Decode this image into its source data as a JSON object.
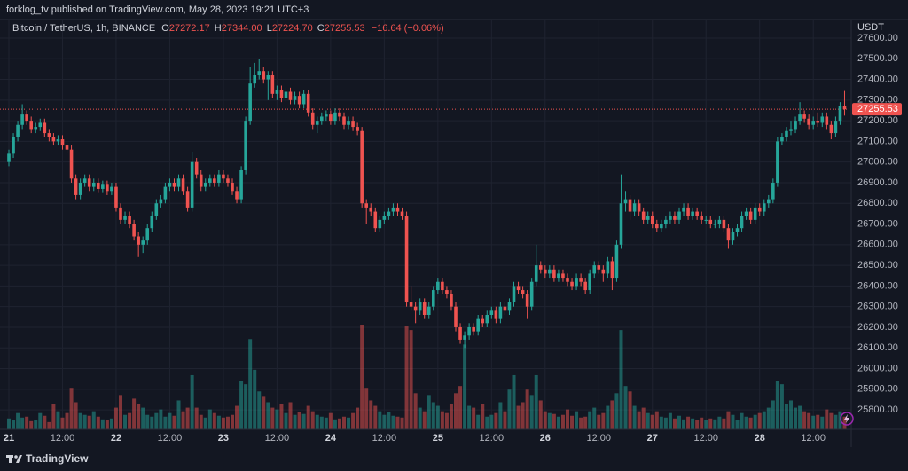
{
  "header": {
    "published": "forklog_tv published on TradingView.com, May 28, 2023 19:21 UTC+3"
  },
  "footer": {
    "brand": "TradingView"
  },
  "chart_data": {
    "type": "candlestick",
    "title": "Bitcoin / TetherUS, 1h, BINANCE",
    "ohlc_keys": [
      "O",
      "H",
      "L",
      "C"
    ],
    "ohlc_labels": [
      "27272.17",
      "27344.00",
      "27224.70",
      "27255.53"
    ],
    "change_label": "−16.64 (−0.06%)",
    "y_axis_label": "USDT",
    "up_color": "#26a69a",
    "down_color": "#ef5350",
    "grid": true,
    "ylim": [
      25706,
      27690
    ],
    "yticks": [
      {
        "value": 25800,
        "label": "25800.00"
      },
      {
        "value": 25900,
        "label": "25900.00"
      },
      {
        "value": 26000,
        "label": "26000.00"
      },
      {
        "value": 26100,
        "label": "26100.00"
      },
      {
        "value": 26200,
        "label": "26200.00"
      },
      {
        "value": 26300,
        "label": "26300.00"
      },
      {
        "value": 26400,
        "label": "26400.00"
      },
      {
        "value": 26500,
        "label": "26500.00"
      },
      {
        "value": 26600,
        "label": "26600.00"
      },
      {
        "value": 26700,
        "label": "26700.00"
      },
      {
        "value": 26800,
        "label": "26800.00"
      },
      {
        "value": 26900,
        "label": "26900.00"
      },
      {
        "value": 27000,
        "label": "27000.00"
      },
      {
        "value": 27100,
        "label": "27100.00"
      },
      {
        "value": 27200,
        "label": "27200.00"
      },
      {
        "value": 27300,
        "label": "27300.00"
      },
      {
        "value": 27400,
        "label": "27400.00"
      },
      {
        "value": 27500,
        "label": "27500.00"
      },
      {
        "value": 27600,
        "label": "27600.00"
      }
    ],
    "categories": [
      "21",
      null,
      null,
      null,
      null,
      null,
      null,
      null,
      null,
      null,
      null,
      null,
      "12:00",
      null,
      null,
      null,
      null,
      null,
      null,
      null,
      null,
      null,
      null,
      null,
      "22",
      null,
      null,
      null,
      null,
      null,
      null,
      null,
      null,
      null,
      null,
      null,
      "12:00",
      null,
      null,
      null,
      null,
      null,
      null,
      null,
      null,
      null,
      null,
      null,
      "23",
      null,
      null,
      null,
      null,
      null,
      null,
      null,
      null,
      null,
      null,
      null,
      "12:00",
      null,
      null,
      null,
      null,
      null,
      null,
      null,
      null,
      null,
      null,
      null,
      "24",
      null,
      null,
      null,
      null,
      null,
      null,
      null,
      null,
      null,
      null,
      null,
      "12:00",
      null,
      null,
      null,
      null,
      null,
      null,
      null,
      null,
      null,
      null,
      null,
      "25",
      null,
      null,
      null,
      null,
      null,
      null,
      null,
      null,
      null,
      null,
      null,
      "12:00",
      null,
      null,
      null,
      null,
      null,
      null,
      null,
      null,
      null,
      null,
      null,
      "26",
      null,
      null,
      null,
      null,
      null,
      null,
      null,
      null,
      null,
      null,
      null,
      "12:00",
      null,
      null,
      null,
      null,
      null,
      null,
      null,
      null,
      null,
      null,
      null,
      "27",
      null,
      null,
      null,
      null,
      null,
      null,
      null,
      null,
      null,
      null,
      null,
      "12:00",
      null,
      null,
      null,
      null,
      null,
      null,
      null,
      null,
      null,
      null,
      null,
      "28",
      null,
      null,
      null,
      null,
      null,
      null,
      null,
      null,
      null,
      null,
      null,
      "12:00",
      null,
      null,
      null,
      null,
      null,
      null,
      null
    ],
    "open": [
      27000,
      27040,
      27120,
      27180,
      27230,
      27200,
      27160,
      27170,
      27190,
      27140,
      27120,
      27100,
      27110,
      27080,
      27060,
      26920,
      26840,
      26900,
      26920,
      26880,
      26900,
      26870,
      26890,
      26860,
      26880,
      26780,
      26720,
      26740,
      26700,
      26640,
      26600,
      26620,
      26680,
      26740,
      26800,
      26820,
      26880,
      26900,
      26880,
      26920,
      26860,
      26780,
      27000,
      26940,
      26880,
      26900,
      26920,
      26900,
      26940,
      26920,
      26900,
      26860,
      26820,
      26960,
      27200,
      27380,
      27420,
      27440,
      27400,
      27420,
      27330,
      27350,
      27310,
      27340,
      27300,
      27320,
      27280,
      27330,
      27240,
      27180,
      27200,
      27220,
      27230,
      27200,
      27240,
      27220,
      27180,
      27200,
      27170,
      27150,
      26800,
      26780,
      26760,
      26680,
      26720,
      26740,
      26760,
      26780,
      26760,
      26740,
      26320,
      26300,
      26280,
      26320,
      26260,
      26300,
      26380,
      26420,
      26380,
      26360,
      26300,
      26200,
      26140,
      26160,
      26200,
      26180,
      26240,
      26220,
      26260,
      26280,
      26240,
      26300,
      26280,
      26320,
      26400,
      26380,
      26360,
      26300,
      26420,
      26500,
      26480,
      26460,
      26480,
      26440,
      26460,
      26440,
      26420,
      26400,
      26440,
      26420,
      26380,
      26460,
      26500,
      26480,
      26460,
      26520,
      26440,
      26600,
      26800,
      26820,
      26760,
      26800,
      26760,
      26720,
      26740,
      26700,
      26680,
      26700,
      26720,
      26740,
      26720,
      26760,
      26780,
      26740,
      26760,
      26740,
      26720,
      26720,
      26700,
      26700,
      26720,
      26680,
      26620,
      26660,
      26680,
      26740,
      26760,
      26720,
      26780,
      26760,
      26800,
      26820,
      26900,
      27100,
      27120,
      27150,
      27160,
      27200,
      27230,
      27210,
      27180,
      27200,
      27190,
      27220,
      27180,
      27140,
      27200,
      27272.17
    ],
    "high": [
      27060,
      27140,
      27200,
      27280,
      27250,
      27220,
      27190,
      27210,
      27210,
      27160,
      27140,
      27130,
      27130,
      27100,
      27080,
      26940,
      26920,
      26940,
      26940,
      26920,
      26920,
      26910,
      26910,
      26900,
      26900,
      26800,
      26760,
      26760,
      26720,
      26660,
      26640,
      26700,
      26760,
      26820,
      26840,
      26900,
      26920,
      26920,
      26940,
      26940,
      26880,
      27050,
      27020,
      26960,
      26920,
      26940,
      26940,
      26960,
      26960,
      26940,
      26920,
      26880,
      26980,
      27220,
      27460,
      27480,
      27500,
      27460,
      27440,
      27440,
      27370,
      27370,
      27360,
      27360,
      27340,
      27340,
      27350,
      27350,
      27260,
      27220,
      27240,
      27250,
      27250,
      27260,
      27260,
      27240,
      27220,
      27220,
      27190,
      27170,
      26820,
      26800,
      26780,
      26740,
      26760,
      26780,
      26800,
      26800,
      26780,
      26760,
      26400,
      26320,
      26340,
      26340,
      26320,
      26400,
      26440,
      26440,
      26400,
      26380,
      26320,
      26220,
      26180,
      26220,
      26220,
      26260,
      26260,
      26280,
      26300,
      26300,
      26320,
      26320,
      26340,
      26420,
      26420,
      26400,
      26380,
      26440,
      26600,
      26520,
      26500,
      26500,
      26500,
      26480,
      26480,
      26460,
      26440,
      26460,
      26460,
      26440,
      26480,
      26520,
      26520,
      26500,
      26540,
      26540,
      26620,
      26940,
      26860,
      26840,
      26820,
      26820,
      26780,
      26760,
      26760,
      26720,
      26720,
      26740,
      26760,
      26760,
      26780,
      26800,
      26800,
      26780,
      26780,
      26760,
      26740,
      26740,
      26720,
      26740,
      26740,
      26700,
      26680,
      26700,
      26760,
      26780,
      26780,
      26800,
      26800,
      26820,
      26840,
      26920,
      27120,
      27140,
      27170,
      27200,
      27220,
      27290,
      27250,
      27230,
      27220,
      27240,
      27240,
      27240,
      27200,
      27220,
      27290,
      27344
    ],
    "low": [
      26980,
      27020,
      27100,
      27160,
      27180,
      27140,
      27140,
      27150,
      27120,
      27100,
      27080,
      27080,
      27060,
      27040,
      26900,
      26820,
      26820,
      26880,
      26860,
      26860,
      26850,
      26850,
      26840,
      26840,
      26760,
      26700,
      26700,
      26680,
      26620,
      26540,
      26560,
      26600,
      26660,
      26720,
      26780,
      26800,
      26860,
      26860,
      26860,
      26840,
      26760,
      26760,
      26920,
      26860,
      26860,
      26880,
      26880,
      26880,
      26900,
      26880,
      26840,
      26800,
      26800,
      26940,
      27180,
      27360,
      27400,
      27380,
      27300,
      27310,
      27300,
      27290,
      27290,
      27280,
      27280,
      27260,
      27260,
      27220,
      27160,
      27140,
      27180,
      27200,
      27180,
      27180,
      27200,
      27160,
      27160,
      27150,
      27130,
      26780,
      26700,
      26740,
      26660,
      26660,
      26700,
      26720,
      26740,
      26740,
      26720,
      26300,
      26280,
      26220,
      26260,
      26240,
      26240,
      26280,
      26360,
      26360,
      26340,
      26280,
      26180,
      26120,
      26100,
      26140,
      26160,
      26160,
      26200,
      26200,
      26240,
      26220,
      26220,
      26260,
      26260,
      26300,
      26360,
      26340,
      26240,
      26280,
      26400,
      26460,
      26440,
      26440,
      26420,
      26420,
      26420,
      26400,
      26380,
      26380,
      26400,
      26360,
      26360,
      26440,
      26460,
      26420,
      26440,
      26380,
      26420,
      26580,
      26760,
      26720,
      26740,
      26740,
      26700,
      26700,
      26680,
      26660,
      26660,
      26680,
      26700,
      26700,
      26700,
      26740,
      26720,
      26720,
      26720,
      26700,
      26700,
      26680,
      26680,
      26680,
      26660,
      26580,
      26600,
      26640,
      26660,
      26720,
      26700,
      26700,
      26740,
      26740,
      26780,
      26800,
      26880,
      27080,
      27100,
      27130,
      27140,
      27180,
      27190,
      27160,
      27160,
      27170,
      27170,
      27160,
      27110,
      27120,
      27180,
      27224.7
    ],
    "close": [
      27040,
      27120,
      27180,
      27230,
      27200,
      27160,
      27170,
      27190,
      27140,
      27120,
      27100,
      27110,
      27080,
      27060,
      26920,
      26840,
      26900,
      26920,
      26880,
      26900,
      26870,
      26890,
      26860,
      26880,
      26780,
      26720,
      26740,
      26700,
      26640,
      26600,
      26620,
      26680,
      26740,
      26800,
      26820,
      26880,
      26900,
      26880,
      26920,
      26860,
      26780,
      27000,
      26940,
      26880,
      26900,
      26920,
      26900,
      26940,
      26920,
      26900,
      26860,
      26820,
      26960,
      27200,
      27380,
      27420,
      27440,
      27400,
      27420,
      27330,
      27350,
      27310,
      27340,
      27300,
      27320,
      27280,
      27330,
      27240,
      27180,
      27200,
      27220,
      27230,
      27200,
      27240,
      27220,
      27180,
      27200,
      27170,
      27150,
      26800,
      26780,
      26760,
      26680,
      26720,
      26740,
      26760,
      26780,
      26760,
      26740,
      26320,
      26300,
      26280,
      26320,
      26260,
      26300,
      26380,
      26420,
      26380,
      26360,
      26300,
      26200,
      26140,
      26160,
      26200,
      26180,
      26240,
      26220,
      26260,
      26280,
      26240,
      26300,
      26280,
      26320,
      26400,
      26380,
      26360,
      26300,
      26420,
      26500,
      26480,
      26460,
      26480,
      26440,
      26460,
      26440,
      26420,
      26400,
      26440,
      26420,
      26380,
      26460,
      26500,
      26480,
      26460,
      26520,
      26440,
      26600,
      26800,
      26820,
      26760,
      26800,
      26760,
      26720,
      26740,
      26700,
      26680,
      26700,
      26720,
      26740,
      26720,
      26760,
      26780,
      26740,
      26760,
      26740,
      26720,
      26720,
      26700,
      26700,
      26720,
      26680,
      26620,
      26660,
      26680,
      26740,
      26760,
      26720,
      26780,
      26760,
      26800,
      26820,
      26900,
      27100,
      27120,
      27150,
      27160,
      27200,
      27230,
      27210,
      27180,
      27200,
      27190,
      27220,
      27180,
      27140,
      27200,
      27272.17,
      27255.53
    ],
    "volume": [
      600,
      500,
      900,
      650,
      700,
      450,
      500,
      900,
      750,
      400,
      1400,
      1000,
      650,
      900,
      2300,
      1500,
      900,
      800,
      750,
      1000,
      700,
      550,
      500,
      600,
      1200,
      1900,
      800,
      900,
      1700,
      1400,
      1200,
      800,
      700,
      900,
      1100,
      700,
      900,
      750,
      1600,
      1000,
      1200,
      3000,
      1200,
      800,
      650,
      1100,
      900,
      750,
      650,
      700,
      800,
      1300,
      2700,
      2500,
      5000,
      3300,
      2100,
      1800,
      1500,
      1200,
      1100,
      1400,
      900,
      1500,
      800,
      950,
      850,
      1300,
      1000,
      800,
      700,
      650,
      900,
      550,
      600,
      700,
      650,
      900,
      1200,
      5800,
      2300,
      1600,
      1300,
      1000,
      800,
      950,
      750,
      700,
      650,
      5700,
      5500,
      2000,
      1200,
      1000,
      1900,
      1500,
      1300,
      1000,
      900,
      1400,
      2000,
      2400,
      4700,
      1300,
      1200,
      800,
      1400,
      700,
      800,
      900,
      1500,
      1000,
      2200,
      3000,
      1300,
      1500,
      2200,
      1900,
      3000,
      1600,
      1000,
      900,
      850,
      700,
      800,
      1100,
      750,
      1000,
      650,
      700,
      1000,
      1200,
      800,
      900,
      1300,
      1600,
      2000,
      5500,
      2400,
      2100,
      1300,
      1000,
      1200,
      900,
      800,
      1000,
      700,
      650,
      900,
      600,
      750,
      550,
      700,
      600,
      500,
      650,
      500,
      600,
      550,
      700,
      600,
      1000,
      800,
      500,
      900,
      700,
      650,
      800,
      900,
      1000,
      1200,
      1600,
      2700,
      2500,
      1400,
      1600,
      1200,
      1300,
      1000,
      900,
      750,
      800,
      700,
      1100,
      900,
      800,
      1000,
      700
    ]
  }
}
